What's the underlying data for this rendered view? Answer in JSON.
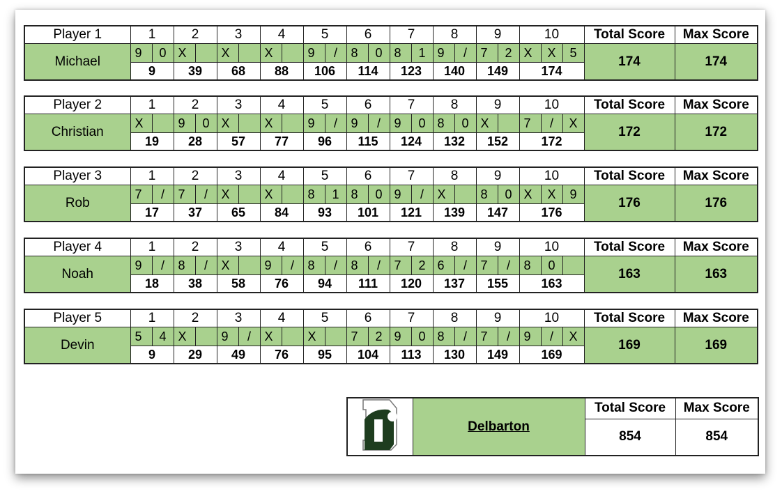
{
  "headers": {
    "total": "Total Score",
    "max": "Max Score"
  },
  "frame_numbers": [
    "1",
    "2",
    "3",
    "4",
    "5",
    "6",
    "7",
    "8",
    "9",
    "10"
  ],
  "players": [
    {
      "label": "Player 1",
      "name": "Michael",
      "frames": [
        {
          "balls": [
            "9",
            "0"
          ],
          "score": "9"
        },
        {
          "balls": [
            "X",
            ""
          ],
          "score": "39"
        },
        {
          "balls": [
            "X",
            ""
          ],
          "score": "68"
        },
        {
          "balls": [
            "X",
            ""
          ],
          "score": "88"
        },
        {
          "balls": [
            "9",
            "/"
          ],
          "score": "106"
        },
        {
          "balls": [
            "8",
            "0"
          ],
          "score": "114"
        },
        {
          "balls": [
            "8",
            "1"
          ],
          "score": "123"
        },
        {
          "balls": [
            "9",
            "/"
          ],
          "score": "140"
        },
        {
          "balls": [
            "7",
            "2"
          ],
          "score": "149"
        },
        {
          "balls": [
            "X",
            "X",
            "5"
          ],
          "score": "174"
        }
      ],
      "total": "174",
      "max": "174"
    },
    {
      "label": "Player 2",
      "name": "Christian",
      "frames": [
        {
          "balls": [
            "X",
            ""
          ],
          "score": "19"
        },
        {
          "balls": [
            "9",
            "0"
          ],
          "score": "28"
        },
        {
          "balls": [
            "X",
            ""
          ],
          "score": "57"
        },
        {
          "balls": [
            "X",
            ""
          ],
          "score": "77"
        },
        {
          "balls": [
            "9",
            "/"
          ],
          "score": "96"
        },
        {
          "balls": [
            "9",
            "/"
          ],
          "score": "115"
        },
        {
          "balls": [
            "9",
            "0"
          ],
          "score": "124"
        },
        {
          "balls": [
            "8",
            "0"
          ],
          "score": "132"
        },
        {
          "balls": [
            "X",
            ""
          ],
          "score": "152"
        },
        {
          "balls": [
            "7",
            "/",
            "X"
          ],
          "score": "172"
        }
      ],
      "total": "172",
      "max": "172"
    },
    {
      "label": "Player 3",
      "name": "Rob",
      "frames": [
        {
          "balls": [
            "7",
            "/"
          ],
          "score": "17"
        },
        {
          "balls": [
            "7",
            "/"
          ],
          "score": "37"
        },
        {
          "balls": [
            "X",
            ""
          ],
          "score": "65"
        },
        {
          "balls": [
            "X",
            ""
          ],
          "score": "84"
        },
        {
          "balls": [
            "8",
            "1"
          ],
          "score": "93"
        },
        {
          "balls": [
            "8",
            "0"
          ],
          "score": "101"
        },
        {
          "balls": [
            "9",
            "/"
          ],
          "score": "121"
        },
        {
          "balls": [
            "X",
            ""
          ],
          "score": "139"
        },
        {
          "balls": [
            "8",
            "0"
          ],
          "score": "147"
        },
        {
          "balls": [
            "X",
            "X",
            "9"
          ],
          "score": "176"
        }
      ],
      "total": "176",
      "max": "176"
    },
    {
      "label": "Player 4",
      "name": "Noah",
      "frames": [
        {
          "balls": [
            "9",
            "/"
          ],
          "score": "18"
        },
        {
          "balls": [
            "8",
            "/"
          ],
          "score": "38"
        },
        {
          "balls": [
            "X",
            ""
          ],
          "score": "58"
        },
        {
          "balls": [
            "9",
            "/"
          ],
          "score": "76"
        },
        {
          "balls": [
            "8",
            "/"
          ],
          "score": "94"
        },
        {
          "balls": [
            "8",
            "/"
          ],
          "score": "111"
        },
        {
          "balls": [
            "7",
            "2"
          ],
          "score": "120"
        },
        {
          "balls": [
            "6",
            "/"
          ],
          "score": "137"
        },
        {
          "balls": [
            "7",
            "/"
          ],
          "score": "155"
        },
        {
          "balls": [
            "8",
            "0",
            ""
          ],
          "score": "163"
        }
      ],
      "total": "163",
      "max": "163"
    },
    {
      "label": "Player 5",
      "name": "Devin",
      "frames": [
        {
          "balls": [
            "5",
            "4"
          ],
          "score": "9"
        },
        {
          "balls": [
            "X",
            ""
          ],
          "score": "29"
        },
        {
          "balls": [
            "9",
            "/"
          ],
          "score": "49"
        },
        {
          "balls": [
            "X",
            ""
          ],
          "score": "76"
        },
        {
          "balls": [
            "X",
            ""
          ],
          "score": "95"
        },
        {
          "balls": [
            "7",
            "2"
          ],
          "score": "104"
        },
        {
          "balls": [
            "9",
            "0"
          ],
          "score": "113"
        },
        {
          "balls": [
            "8",
            "/"
          ],
          "score": "130"
        },
        {
          "balls": [
            "7",
            "/"
          ],
          "score": "149"
        },
        {
          "balls": [
            "9",
            "/",
            "X"
          ],
          "score": "169"
        }
      ],
      "total": "169",
      "max": "169"
    }
  ],
  "team": {
    "name": "Delbarton",
    "logo": "Delbarton D",
    "total": "854",
    "max": "854"
  },
  "colors": {
    "cell_green": "#a9d18e",
    "logo_green": "#1e3d1f",
    "border": "#222222"
  }
}
